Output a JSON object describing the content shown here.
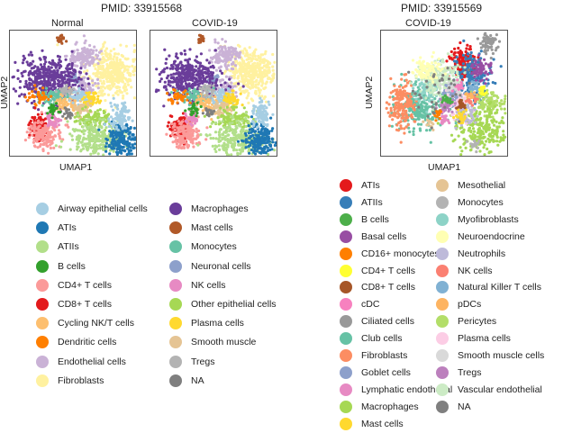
{
  "chart_data": [
    {
      "type": "scatter",
      "title": "PMID: 33915568",
      "panels": [
        {
          "subtitle": "Normal",
          "xlabel": "UMAP1",
          "ylabel": "UMAP2"
        },
        {
          "subtitle": "COVID-19",
          "xlabel": "",
          "ylabel": ""
        }
      ],
      "legend": [
        {
          "label": "Airway epithelial cells",
          "color": "#a6cee3"
        },
        {
          "label": "ATIs",
          "color": "#1f78b4"
        },
        {
          "label": "ATIIs",
          "color": "#b2df8a"
        },
        {
          "label": "B cells",
          "color": "#33a02c"
        },
        {
          "label": "CD4+ T cells",
          "color": "#fb9a99"
        },
        {
          "label": "CD8+ T cells",
          "color": "#e31a1c"
        },
        {
          "label": "Cycling NK/T cells",
          "color": "#fdbf6f"
        },
        {
          "label": "Dendritic cells",
          "color": "#ff7f00"
        },
        {
          "label": "Endothelial cells",
          "color": "#cab2d6"
        },
        {
          "label": "Fibroblasts",
          "color": "#fff1a0"
        },
        {
          "label": "Macrophages",
          "color": "#6a3d9a"
        },
        {
          "label": "Mast cells",
          "color": "#b15928"
        },
        {
          "label": "Monocytes",
          "color": "#66c2a5"
        },
        {
          "label": "Neuronal cells",
          "color": "#8da0cb"
        },
        {
          "label": "NK cells",
          "color": "#e78ac3"
        },
        {
          "label": "Other epithelial cells",
          "color": "#a6d854"
        },
        {
          "label": "Plasma cells",
          "color": "#ffd92f"
        },
        {
          "label": "Smooth muscle",
          "color": "#e5c494"
        },
        {
          "label": "Tregs",
          "color": "#b3b3b3"
        },
        {
          "label": "NA",
          "color": "#7f7f7f"
        }
      ]
    },
    {
      "type": "scatter",
      "title": "PMID: 33915569",
      "panels": [
        {
          "subtitle": "COVID-19",
          "xlabel": "UMAP1",
          "ylabel": "UMAP2"
        }
      ],
      "legend": [
        {
          "label": "ATIs",
          "color": "#e41a1c"
        },
        {
          "label": "ATIIs",
          "color": "#377eb8"
        },
        {
          "label": "B cells",
          "color": "#4daf4a"
        },
        {
          "label": "Basal cells",
          "color": "#984ea3"
        },
        {
          "label": "CD16+ monocytes",
          "color": "#ff7f00"
        },
        {
          "label": "CD4+ T cells",
          "color": "#ffff33"
        },
        {
          "label": "CD8+ T cells",
          "color": "#a65628"
        },
        {
          "label": "cDC",
          "color": "#f781bf"
        },
        {
          "label": "Ciliated cells",
          "color": "#999999"
        },
        {
          "label": "Club cells",
          "color": "#66c2a5"
        },
        {
          "label": "Fibroblasts",
          "color": "#fc8d62"
        },
        {
          "label": "Goblet cells",
          "color": "#8da0cb"
        },
        {
          "label": "Lymphatic endothelial",
          "color": "#e78ac3"
        },
        {
          "label": "Macrophages",
          "color": "#a6d854"
        },
        {
          "label": "Mast cells",
          "color": "#ffd92f"
        },
        {
          "label": "Mesothelial",
          "color": "#e5c494"
        },
        {
          "label": "Monocytes",
          "color": "#b3b3b3"
        },
        {
          "label": "Myofibroblasts",
          "color": "#8dd3c7"
        },
        {
          "label": "Neuroendocrine",
          "color": "#ffffb3"
        },
        {
          "label": "Neutrophils",
          "color": "#bebada"
        },
        {
          "label": "NK cells",
          "color": "#fb8072"
        },
        {
          "label": "Natural Killer T cells",
          "color": "#80b1d3"
        },
        {
          "label": "pDCs",
          "color": "#fdb462"
        },
        {
          "label": "Pericytes",
          "color": "#b3de69"
        },
        {
          "label": "Plasma cells",
          "color": "#fccde5"
        },
        {
          "label": "Smooth muscle cells",
          "color": "#d9d9d9"
        },
        {
          "label": "Tregs",
          "color": "#bc80bd"
        },
        {
          "label": "Vascular endothelial",
          "color": "#ccebc5"
        },
        {
          "label": "NA",
          "color": "#7f7f7f"
        }
      ]
    }
  ]
}
